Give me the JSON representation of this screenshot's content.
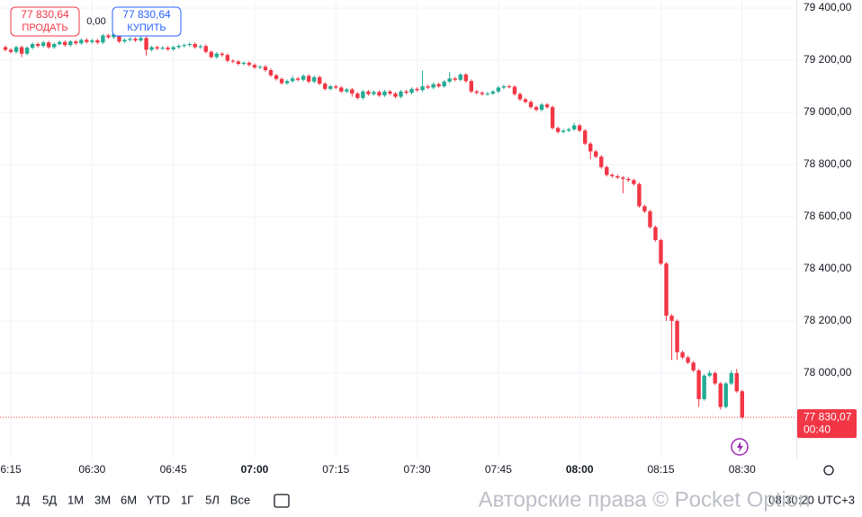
{
  "chart_data": {
    "type": "candlestick",
    "x": [
      "06:14",
      "06:15",
      "06:16",
      "06:17",
      "06:18",
      "06:19",
      "06:20",
      "06:21",
      "06:22",
      "06:23",
      "06:24",
      "06:25",
      "06:26",
      "06:27",
      "06:28",
      "06:29",
      "06:30",
      "06:31",
      "06:32",
      "06:33",
      "06:34",
      "06:35",
      "06:36",
      "06:37",
      "06:38",
      "06:39",
      "06:40",
      "06:41",
      "06:42",
      "06:43",
      "06:44",
      "06:45",
      "06:46",
      "06:47",
      "06:48",
      "06:49",
      "06:50",
      "06:51",
      "06:52",
      "06:53",
      "06:54",
      "06:55",
      "06:56",
      "06:57",
      "06:58",
      "06:59",
      "07:00",
      "07:01",
      "07:02",
      "07:03",
      "07:04",
      "07:05",
      "07:06",
      "07:07",
      "07:08",
      "07:09",
      "07:10",
      "07:11",
      "07:12",
      "07:13",
      "07:14",
      "07:15",
      "07:16",
      "07:17",
      "07:18",
      "07:19",
      "07:20",
      "07:21",
      "07:22",
      "07:23",
      "07:24",
      "07:25",
      "07:26",
      "07:27",
      "07:28",
      "07:29",
      "07:30",
      "07:31",
      "07:32",
      "07:33",
      "07:34",
      "07:35",
      "07:36",
      "07:37",
      "07:38",
      "07:39",
      "07:40",
      "07:41",
      "07:42",
      "07:43",
      "07:44",
      "07:45",
      "07:46",
      "07:47",
      "07:48",
      "07:49",
      "07:50",
      "07:51",
      "07:52",
      "07:53",
      "07:54",
      "07:55",
      "07:56",
      "07:57",
      "07:58",
      "07:59",
      "08:00",
      "08:01",
      "08:02",
      "08:03",
      "08:04",
      "08:05",
      "08:06",
      "08:07",
      "08:08",
      "08:09",
      "08:10",
      "08:11",
      "08:12",
      "08:13",
      "08:14",
      "08:15",
      "08:16",
      "08:17",
      "08:18",
      "08:19",
      "08:20",
      "08:21",
      "08:22",
      "08:23",
      "08:24",
      "08:25",
      "08:26",
      "08:27",
      "08:28",
      "08:29",
      "08:30"
    ],
    "candles": [
      [
        79250,
        79256,
        79234,
        79240
      ],
      [
        79240,
        79246,
        79226,
        79232
      ],
      [
        79232,
        79256,
        79226,
        79250
      ],
      [
        79250,
        79256,
        79212,
        79225
      ],
      [
        79225,
        79254,
        79219,
        79248
      ],
      [
        79248,
        79268,
        79242,
        79262
      ],
      [
        79262,
        79268,
        79249,
        79255
      ],
      [
        79255,
        79274,
        79249,
        79268
      ],
      [
        79268,
        79274,
        79244,
        79250
      ],
      [
        79250,
        79268,
        79244,
        79262
      ],
      [
        79262,
        79276,
        79256,
        79270
      ],
      [
        79270,
        79276,
        79252,
        79258
      ],
      [
        79258,
        79278,
        79252,
        79272
      ],
      [
        79272,
        79278,
        79259,
        79265
      ],
      [
        79265,
        79284,
        79259,
        79278
      ],
      [
        79278,
        79284,
        79264,
        79270
      ],
      [
        79270,
        79282,
        79264,
        79276
      ],
      [
        79276,
        79282,
        79262,
        79268
      ],
      [
        79268,
        79301,
        79262,
        79295
      ],
      [
        79295,
        79301,
        79282,
        79288
      ],
      [
        79288,
        79306,
        79282,
        79300
      ],
      [
        79300,
        79306,
        79266,
        79272
      ],
      [
        79272,
        79284,
        79266,
        79278
      ],
      [
        79278,
        79288,
        79272,
        79282
      ],
      [
        79282,
        79288,
        79270,
        79276
      ],
      [
        79276,
        79291,
        79270,
        79285
      ],
      [
        79285,
        79291,
        79218,
        79240
      ],
      [
        79240,
        79256,
        79234,
        79250
      ],
      [
        79250,
        79256,
        79239,
        79245
      ],
      [
        79245,
        79254,
        79239,
        79248
      ],
      [
        79248,
        79254,
        79236,
        79242
      ],
      [
        79242,
        79256,
        79236,
        79250
      ],
      [
        79250,
        79261,
        79244,
        79255
      ],
      [
        79255,
        79264,
        79249,
        79258
      ],
      [
        79258,
        79268,
        79252,
        79262
      ],
      [
        79262,
        79268,
        79244,
        79250
      ],
      [
        79250,
        79260,
        79244,
        79254
      ],
      [
        79254,
        79260,
        79226,
        79232
      ],
      [
        79232,
        79238,
        79206,
        79212
      ],
      [
        79212,
        79231,
        79206,
        79225
      ],
      [
        79225,
        79231,
        79214,
        79220
      ],
      [
        79220,
        79226,
        79192,
        79198
      ],
      [
        79198,
        79204,
        79189,
        79195
      ],
      [
        79195,
        79201,
        79180,
        79186
      ],
      [
        79186,
        79196,
        79180,
        79190
      ],
      [
        79190,
        79196,
        79176,
        79182
      ],
      [
        79182,
        79188,
        79166,
        79172
      ],
      [
        79172,
        79181,
        79166,
        79175
      ],
      [
        79175,
        79181,
        79156,
        79162
      ],
      [
        79162,
        79168,
        79136,
        79142
      ],
      [
        79142,
        79148,
        79122,
        79128
      ],
      [
        79128,
        79134,
        79106,
        79112
      ],
      [
        79112,
        79126,
        79106,
        79120
      ],
      [
        79120,
        79140,
        79114,
        79130
      ],
      [
        79130,
        79136,
        79119,
        79125
      ],
      [
        79125,
        79146,
        79119,
        79140
      ],
      [
        79140,
        79146,
        79112,
        79118
      ],
      [
        79118,
        79141,
        79112,
        79135
      ],
      [
        79135,
        79141,
        79104,
        79110
      ],
      [
        79110,
        79116,
        79084,
        79090
      ],
      [
        79090,
        79106,
        79084,
        79100
      ],
      [
        79100,
        79106,
        79089,
        79095
      ],
      [
        79095,
        79101,
        79074,
        79080
      ],
      [
        79080,
        79094,
        79074,
        79088
      ],
      [
        79088,
        79094,
        79060,
        79072
      ],
      [
        79072,
        79078,
        79049,
        79055
      ],
      [
        79055,
        79086,
        79049,
        79080
      ],
      [
        79080,
        79086,
        79064,
        79070
      ],
      [
        79070,
        79084,
        79064,
        79078
      ],
      [
        79078,
        79084,
        79059,
        79065
      ],
      [
        79065,
        79086,
        79059,
        79080
      ],
      [
        79080,
        79086,
        79066,
        79072
      ],
      [
        79072,
        79078,
        79054,
        79060
      ],
      [
        79060,
        79086,
        79054,
        79080
      ],
      [
        79080,
        79086,
        79069,
        79075
      ],
      [
        79075,
        79096,
        79069,
        79090
      ],
      [
        79090,
        79096,
        79079,
        79085
      ],
      [
        79085,
        79160,
        79079,
        79100
      ],
      [
        79100,
        79106,
        79089,
        79095
      ],
      [
        79095,
        79114,
        79089,
        79108
      ],
      [
        79108,
        79114,
        79094,
        79100
      ],
      [
        79100,
        79124,
        79094,
        79118
      ],
      [
        79118,
        79155,
        79112,
        79130
      ],
      [
        79130,
        79136,
        79119,
        79125
      ],
      [
        79125,
        79151,
        79119,
        79145
      ],
      [
        79145,
        79151,
        79114,
        79120
      ],
      [
        79120,
        79126,
        79074,
        79080
      ],
      [
        79080,
        79086,
        79069,
        79075
      ],
      [
        79075,
        79081,
        79064,
        79070
      ],
      [
        79070,
        79078,
        79064,
        79072
      ],
      [
        79072,
        79086,
        79066,
        79080
      ],
      [
        79080,
        79101,
        79074,
        79095
      ],
      [
        79095,
        79106,
        79089,
        79100
      ],
      [
        79100,
        79106,
        79092,
        79098
      ],
      [
        79098,
        79104,
        79064,
        79070
      ],
      [
        79070,
        79076,
        79044,
        79050
      ],
      [
        79050,
        79056,
        79034,
        79040
      ],
      [
        79040,
        79046,
        79014,
        79020
      ],
      [
        79020,
        79026,
        79004,
        79010
      ],
      [
        79010,
        79036,
        79004,
        79030
      ],
      [
        79030,
        79036,
        79014,
        79020
      ],
      [
        79020,
        79026,
        78934,
        78940
      ],
      [
        78940,
        78946,
        78919,
        78925
      ],
      [
        78925,
        78936,
        78919,
        78930
      ],
      [
        78930,
        78941,
        78924,
        78935
      ],
      [
        78935,
        78960,
        78929,
        78950
      ],
      [
        78950,
        78956,
        78924,
        78930
      ],
      [
        78930,
        78936,
        78874,
        78880
      ],
      [
        78880,
        78886,
        78820,
        78850
      ],
      [
        78850,
        78856,
        78824,
        78830
      ],
      [
        78830,
        78836,
        78784,
        78790
      ],
      [
        78790,
        78796,
        78754,
        78760
      ],
      [
        78760,
        78766,
        78749,
        78755
      ],
      [
        78755,
        78761,
        78744,
        78750
      ],
      [
        78750,
        78756,
        78690,
        78745
      ],
      [
        78745,
        78751,
        78734,
        78740
      ],
      [
        78740,
        78746,
        78719,
        78725
      ],
      [
        78725,
        78731,
        78634,
        78640
      ],
      [
        78640,
        78646,
        78614,
        78620
      ],
      [
        78620,
        78626,
        78554,
        78560
      ],
      [
        78560,
        78566,
        78504,
        78510
      ],
      [
        78510,
        78516,
        78414,
        78420
      ],
      [
        78420,
        78426,
        78200,
        78220
      ],
      [
        78220,
        78226,
        78050,
        78200
      ],
      [
        78200,
        78206,
        78050,
        78080
      ],
      [
        78080,
        78086,
        78054,
        78060
      ],
      [
        78060,
        78066,
        78034,
        78040
      ],
      [
        78040,
        78046,
        78004,
        78010
      ],
      [
        78010,
        78016,
        77870,
        77900
      ],
      [
        77900,
        77996,
        77894,
        77990
      ],
      [
        77990,
        78010,
        77984,
        78000
      ],
      [
        78000,
        78006,
        77954,
        77960
      ],
      [
        77960,
        77966,
        77860,
        77870
      ],
      [
        77870,
        77966,
        77864,
        77960
      ],
      [
        77960,
        78010,
        77954,
        78000
      ],
      [
        78000,
        78016,
        77924,
        77930
      ],
      [
        77930,
        77936,
        77824,
        77830
      ]
    ],
    "up_color": "#22ab94",
    "down_color": "#f23645",
    "xlim": [
      "06:13",
      "08:40"
    ],
    "xticks": [
      {
        "value": "06:15",
        "label": "6:15"
      },
      "06:30",
      "06:45",
      "07:00",
      "07:15",
      "07:30",
      "07:45",
      "08:00",
      "08:15",
      "08:30"
    ],
    "ylim": [
      77672,
      79431
    ],
    "yticks": [
      {
        "value": 78000,
        "label": "78 000,00"
      },
      {
        "value": 78200,
        "label": "78 200,00"
      },
      {
        "value": 78400,
        "label": "78 400,00"
      },
      {
        "value": 78600,
        "label": "78 600,00"
      },
      {
        "value": 78800,
        "label": "78 800,00"
      },
      {
        "value": 79000,
        "label": "79 000,00"
      },
      {
        "value": 79200,
        "label": "79 200,00"
      },
      {
        "value": 79400,
        "label": "79 400,00"
      }
    ],
    "grid": true,
    "last_price": {
      "value": 77830.07,
      "label": "77 830,07"
    },
    "countdown": "00:40"
  },
  "trade": {
    "sell": {
      "price": "77 830,64",
      "label": "ПРОДАТЬ"
    },
    "buy": {
      "price": "77 830,64",
      "label": "КУПИТЬ"
    },
    "spread": "0,00"
  },
  "toolbar": {
    "ranges": [
      "1Д",
      "5Д",
      "1М",
      "3М",
      "6М",
      "YTD",
      "1Г",
      "5Л",
      "Все"
    ],
    "clock": "08:30:20 UTC+3",
    "watermark": "Авторские права © Pocket Option"
  }
}
